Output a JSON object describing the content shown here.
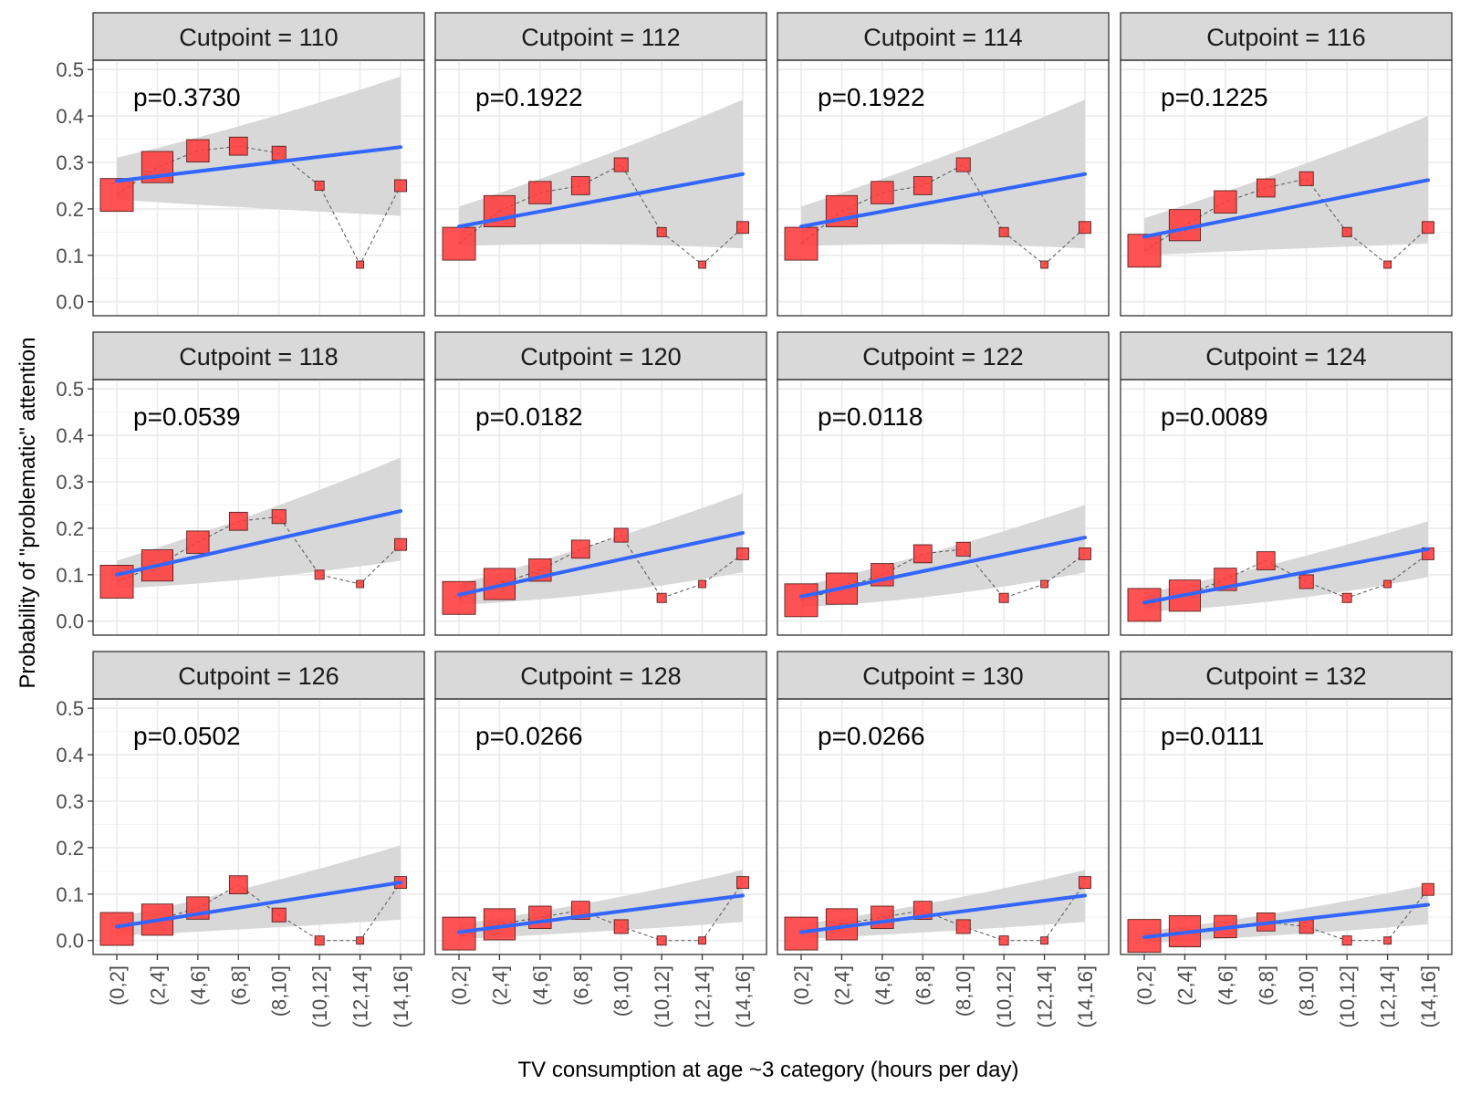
{
  "chart_data": {
    "type": "scatter",
    "x_axis_label": "TV consumption at age ~3 category (hours per day)",
    "y_axis_label": "Probability of \"problematic\" attention",
    "categories": [
      "(0,2]",
      "(2,4]",
      "(4,6]",
      "(6,8]",
      "(8,10]",
      "(10,12]",
      "(12,14]",
      "(14,16]"
    ],
    "y_ticks": [
      "0.0",
      "0.1",
      "0.2",
      "0.3",
      "0.4",
      "0.5"
    ],
    "ylim": [
      -0.03,
      0.52
    ],
    "point_size_rel": [
      1.0,
      0.95,
      0.68,
      0.55,
      0.42,
      0.28,
      0.22,
      0.36
    ],
    "colors": {
      "point_fill": "#ff3b3b",
      "fit_line": "#3366ff",
      "ribbon": "#d6d6d6",
      "strip_bg": "#d9d9d9",
      "panel_border": "#333333",
      "grid": "#ebebeb"
    },
    "panels": [
      {
        "label": "Cutpoint = 110",
        "p_label": "p=0.3730",
        "values": [
          0.23,
          0.29,
          0.325,
          0.335,
          0.32,
          0.25,
          0.08,
          0.25
        ],
        "fit": [
          0.26,
          0.333
        ],
        "ribbon_lo": [
          0.22,
          0.185
        ],
        "ribbon_hi": [
          0.31,
          0.485
        ]
      },
      {
        "label": "Cutpoint = 112",
        "p_label": "p=0.1922",
        "values": [
          0.125,
          0.195,
          0.235,
          0.25,
          0.295,
          0.15,
          0.08,
          0.16
        ],
        "fit": [
          0.162,
          0.275
        ],
        "ribbon_lo": [
          0.12,
          0.115
        ],
        "ribbon_hi": [
          0.205,
          0.435
        ]
      },
      {
        "label": "Cutpoint = 114",
        "p_label": "p=0.1922",
        "values": [
          0.125,
          0.195,
          0.235,
          0.25,
          0.295,
          0.15,
          0.08,
          0.16
        ],
        "fit": [
          0.162,
          0.275
        ],
        "ribbon_lo": [
          0.12,
          0.115
        ],
        "ribbon_hi": [
          0.205,
          0.435
        ]
      },
      {
        "label": "Cutpoint = 116",
        "p_label": "p=0.1225",
        "values": [
          0.11,
          0.165,
          0.215,
          0.245,
          0.265,
          0.15,
          0.08,
          0.16
        ],
        "fit": [
          0.14,
          0.262
        ],
        "ribbon_lo": [
          0.1,
          0.125
        ],
        "ribbon_hi": [
          0.18,
          0.4
        ]
      },
      {
        "label": "Cutpoint = 118",
        "p_label": "p=0.0539",
        "values": [
          0.085,
          0.12,
          0.17,
          0.215,
          0.225,
          0.1,
          0.08,
          0.165
        ],
        "fit": [
          0.1,
          0.237
        ],
        "ribbon_lo": [
          0.07,
          0.13
        ],
        "ribbon_hi": [
          0.13,
          0.352
        ]
      },
      {
        "label": "Cutpoint = 120",
        "p_label": "p=0.0182",
        "values": [
          0.05,
          0.08,
          0.11,
          0.155,
          0.185,
          0.05,
          0.08,
          0.145
        ],
        "fit": [
          0.057,
          0.19
        ],
        "ribbon_lo": [
          0.035,
          0.105
        ],
        "ribbon_hi": [
          0.08,
          0.275
        ]
      },
      {
        "label": "Cutpoint = 122",
        "p_label": "p=0.0118",
        "values": [
          0.045,
          0.07,
          0.1,
          0.145,
          0.155,
          0.05,
          0.08,
          0.145
        ],
        "fit": [
          0.053,
          0.18
        ],
        "ribbon_lo": [
          0.03,
          0.105
        ],
        "ribbon_hi": [
          0.075,
          0.25
        ]
      },
      {
        "label": "Cutpoint = 124",
        "p_label": "p=0.0089",
        "values": [
          0.035,
          0.055,
          0.09,
          0.13,
          0.085,
          0.05,
          0.08,
          0.145
        ],
        "fit": [
          0.04,
          0.155
        ],
        "ribbon_lo": [
          0.02,
          0.095
        ],
        "ribbon_hi": [
          0.06,
          0.215
        ]
      },
      {
        "label": "Cutpoint = 126",
        "p_label": "p=0.0502",
        "values": [
          0.025,
          0.045,
          0.07,
          0.12,
          0.055,
          0.0,
          0.0,
          0.125
        ],
        "fit": [
          0.03,
          0.125
        ],
        "ribbon_lo": [
          0.01,
          0.045
        ],
        "ribbon_hi": [
          0.05,
          0.205
        ]
      },
      {
        "label": "Cutpoint = 128",
        "p_label": "p=0.0266",
        "values": [
          0.015,
          0.035,
          0.05,
          0.065,
          0.03,
          0.0,
          0.0,
          0.125
        ],
        "fit": [
          0.018,
          0.097
        ],
        "ribbon_lo": [
          0.003,
          0.04
        ],
        "ribbon_hi": [
          0.035,
          0.152
        ]
      },
      {
        "label": "Cutpoint = 130",
        "p_label": "p=0.0266",
        "values": [
          0.015,
          0.035,
          0.05,
          0.065,
          0.03,
          0.0,
          0.0,
          0.125
        ],
        "fit": [
          0.018,
          0.097
        ],
        "ribbon_lo": [
          0.003,
          0.04
        ],
        "ribbon_hi": [
          0.035,
          0.152
        ]
      },
      {
        "label": "Cutpoint = 132",
        "p_label": "p=0.0111",
        "values": [
          0.01,
          0.02,
          0.03,
          0.04,
          0.03,
          0.0,
          0.0,
          0.11
        ],
        "fit": [
          0.007,
          0.077
        ],
        "ribbon_lo": [
          -0.005,
          0.035
        ],
        "ribbon_hi": [
          0.02,
          0.12
        ]
      }
    ]
  }
}
